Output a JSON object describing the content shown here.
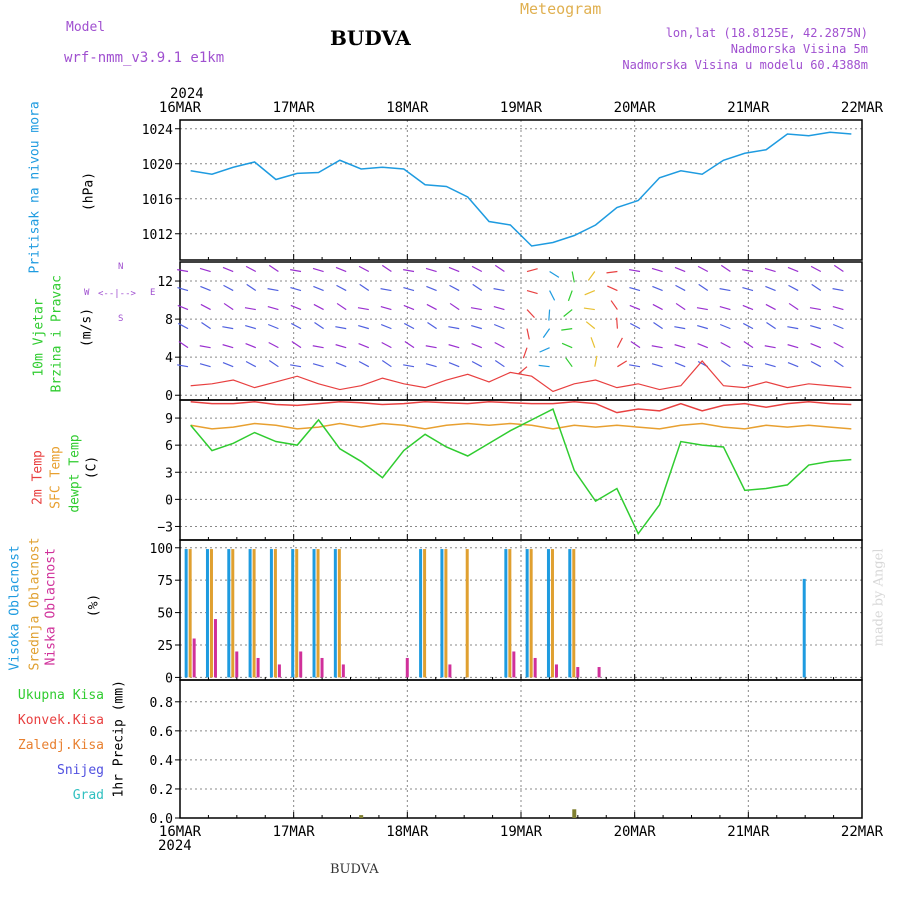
{
  "header": {
    "model_label": "Model",
    "model_name": "wrf-nmm_v3.9.1 e1km",
    "title": "BUDVA",
    "meteogram": "Meteogram",
    "lonlat": "lon,lat (18.8125E, 42.2875N)",
    "elevation": "Nadmorska Visina 5m",
    "model_elevation": "Nadmorska Visina u modelu 60.4388m",
    "year_top": "2024",
    "year_bottom": "2024",
    "footer_name": "BUDVA",
    "credit": "made by Angel"
  },
  "panel_labels": {
    "pressure": {
      "name": "Pritisak na nivou mora",
      "unit": "(hPa)"
    },
    "wind": {
      "name1": "10m Vjetar",
      "name2": "Brzina i Pravac",
      "unit": "(m/s)",
      "compass_n": "N",
      "compass_w": "W",
      "compass_e": "E",
      "compass_s": "S",
      "compass_arrows": "<--|-->"
    },
    "temp": {
      "t2m": "2m Temp",
      "sfc": "SFC Temp",
      "dew": "dewpt Temp",
      "unit": "(C)"
    },
    "cloud": {
      "high": "Visoka Oblacnost",
      "mid": "Srednja Oblacnost",
      "low": "Niska Oblacnost",
      "unit": "(%)"
    },
    "precip": {
      "total": "Ukupna Kisa",
      "conv": "Konvek.Kisa",
      "frozen": "Zaledj.Kisa",
      "snow": "Snijeg",
      "hail": "Grad",
      "unit": "1hr Precip (mm)"
    }
  },
  "colors": {
    "pressure": "#1e9be0",
    "wind_purple": "#9a2fd0",
    "t2m": "#e84040",
    "sfc": "#e8a030",
    "dew": "#30cc30",
    "cloud_high": "#1e9be0",
    "cloud_mid": "#e0a030",
    "cloud_low": "#d0309a"
  },
  "chart_data": [
    {
      "type": "line",
      "panel": "pressure",
      "x_ticks": [
        "16MAR",
        "17MAR",
        "18MAR",
        "19MAR",
        "20MAR",
        "21MAR",
        "22MAR"
      ],
      "ylim": [
        1009,
        1025
      ],
      "y_ticks": [
        1012,
        1016,
        1020,
        1024
      ],
      "series": [
        {
          "values": [
            1019.2,
            1018.8,
            1019.6,
            1020.2,
            1018.2,
            1018.9,
            1019.0,
            1020.4,
            1019.4,
            1019.6,
            1019.4,
            1017.6,
            1017.4,
            1016.2,
            1013.4,
            1013.0,
            1010.6,
            1011.0,
            1011.8,
            1013.0,
            1015.0,
            1015.8,
            1018.4,
            1019.2,
            1018.8,
            1020.4,
            1021.2,
            1021.6,
            1023.4,
            1023.2,
            1023.6,
            1023.4
          ]
        }
      ]
    },
    {
      "type": "line",
      "panel": "wind",
      "ylim": [
        -0.5,
        14
      ],
      "y_ticks": [
        0,
        4,
        8,
        12
      ],
      "series": [
        {
          "values": [
            1.0,
            1.2,
            1.6,
            0.8,
            1.4,
            2.0,
            1.2,
            0.6,
            1.0,
            1.8,
            1.2,
            0.8,
            1.6,
            2.2,
            1.4,
            2.4,
            2.0,
            0.4,
            1.2,
            1.6,
            0.8,
            1.2,
            0.6,
            1.0,
            3.6,
            1.0,
            0.8,
            1.4,
            0.8,
            1.2,
            1.0,
            0.8
          ]
        }
      ]
    },
    {
      "type": "line",
      "panel": "temp",
      "ylim": [
        -4.5,
        11
      ],
      "y_ticks": [
        -3,
        0,
        3,
        6,
        9
      ],
      "series": [
        {
          "values": [
            10.8,
            10.6,
            10.6,
            10.8,
            10.5,
            10.4,
            10.6,
            10.8,
            10.7,
            10.5,
            10.6,
            10.8,
            10.7,
            10.6,
            10.8,
            10.7,
            10.6,
            10.6,
            10.8,
            10.6,
            9.6,
            10.0,
            9.8,
            10.6,
            9.8,
            10.4,
            10.6,
            10.2,
            10.6,
            10.8,
            10.6,
            10.5
          ]
        },
        {
          "values": [
            8.2,
            7.8,
            8.0,
            8.4,
            8.2,
            7.8,
            8.0,
            8.4,
            8.0,
            8.4,
            8.2,
            7.8,
            8.2,
            8.4,
            8.2,
            8.4,
            8.2,
            7.8,
            8.2,
            8.0,
            8.2,
            8.0,
            7.8,
            8.2,
            8.4,
            8.0,
            7.8,
            8.2,
            8.0,
            8.2,
            8.0,
            7.8
          ]
        },
        {
          "values": [
            8.2,
            5.4,
            6.2,
            7.4,
            6.4,
            6.0,
            8.8,
            5.6,
            4.2,
            2.4,
            5.4,
            7.2,
            5.8,
            4.8,
            6.2,
            7.6,
            8.8,
            10.0,
            3.2,
            -0.2,
            1.2,
            -3.8,
            -0.6,
            6.4,
            6.0,
            5.8,
            1.0,
            1.2,
            1.6,
            3.8,
            4.2,
            4.4
          ]
        }
      ]
    },
    {
      "type": "bar",
      "panel": "cloud",
      "ylim": [
        -2,
        106
      ],
      "y_ticks": [
        0,
        25,
        50,
        75,
        100
      ],
      "series": [
        {
          "values": [
            99,
            99,
            99,
            99,
            99,
            99,
            99,
            99,
            0,
            0,
            0,
            99,
            99,
            0,
            0,
            99,
            99,
            99,
            99,
            0,
            0,
            0,
            0,
            0,
            0,
            0,
            0,
            0,
            0,
            76,
            0,
            0
          ]
        },
        {
          "values": [
            99,
            99,
            99,
            99,
            99,
            99,
            99,
            99,
            0,
            0,
            0,
            99,
            99,
            99,
            0,
            99,
            99,
            99,
            99,
            0,
            0,
            0,
            0,
            0,
            0,
            0,
            0,
            0,
            0,
            0,
            0,
            0
          ]
        },
        {
          "values": [
            30,
            45,
            20,
            15,
            10,
            20,
            15,
            10,
            0,
            0,
            15,
            0,
            10,
            0,
            0,
            20,
            15,
            10,
            8,
            8,
            0,
            0,
            0,
            0,
            0,
            0,
            0,
            0,
            0,
            0,
            0,
            0
          ]
        }
      ]
    },
    {
      "type": "bar",
      "panel": "precip",
      "ylim": [
        0,
        0.95
      ],
      "y_ticks": [
        0,
        0.2,
        0.4,
        0.6,
        0.8
      ],
      "series": [
        {
          "values": [
            0,
            0,
            0,
            0,
            0,
            0,
            0,
            0,
            0.02,
            0,
            0,
            0,
            0,
            0,
            0,
            0,
            0,
            0,
            0.06,
            0,
            0,
            0,
            0,
            0,
            0,
            0,
            0,
            0,
            0,
            0,
            0,
            0
          ]
        }
      ]
    }
  ]
}
